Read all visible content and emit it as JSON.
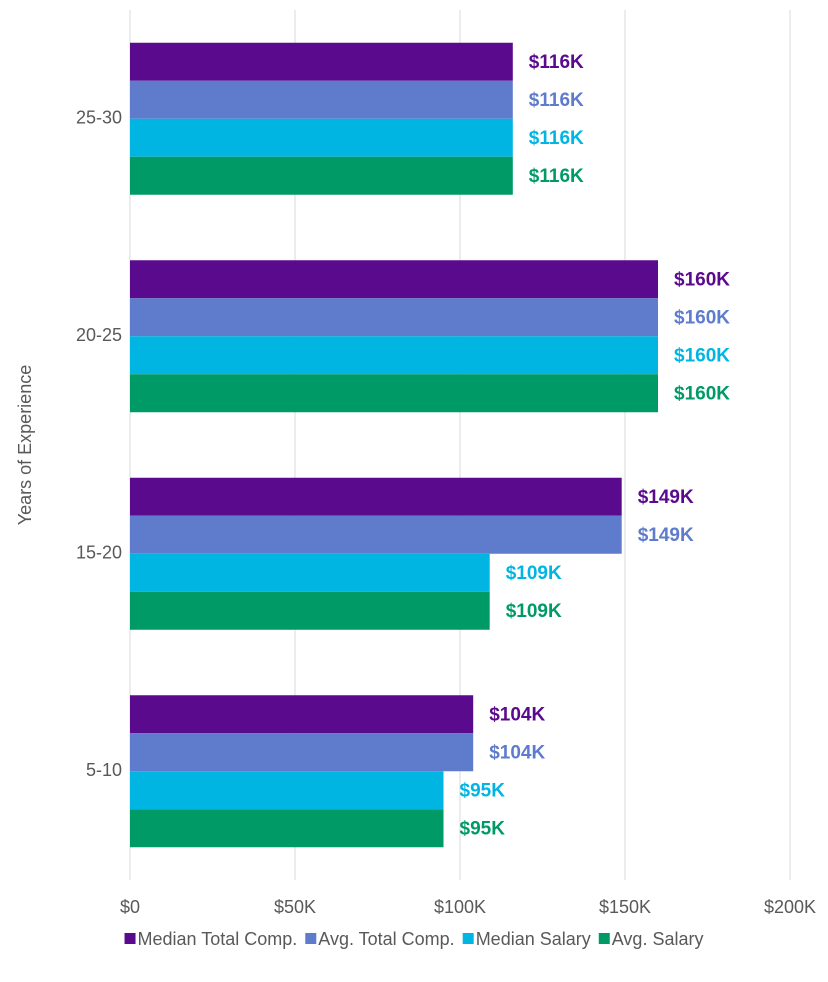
{
  "chart_data": {
    "type": "bar",
    "orientation": "horizontal",
    "y_axis_label": "Years of Experience",
    "categories": [
      "25-30",
      "20-25",
      "15-20",
      "5-10"
    ],
    "series": [
      {
        "name": "Median Total Comp.",
        "color": "#5a0a8c",
        "values": [
          116000,
          160000,
          149000,
          104000
        ],
        "value_labels": [
          "$116K",
          "$160K",
          "$149K",
          "$104K"
        ]
      },
      {
        "name": "Avg. Total Comp.",
        "color": "#5e7bcc",
        "values": [
          116000,
          160000,
          149000,
          104000
        ],
        "value_labels": [
          "$116K",
          "$160K",
          "$149K",
          "$104K"
        ]
      },
      {
        "name": "Median Salary",
        "color": "#00b5e2",
        "values": [
          116000,
          160000,
          109000,
          95000
        ],
        "value_labels": [
          "$116K",
          "$160K",
          "$109K",
          "$95K"
        ]
      },
      {
        "name": "Avg. Salary",
        "color": "#009a66",
        "values": [
          116000,
          160000,
          109000,
          95000
        ],
        "value_labels": [
          "$116K",
          "$160K",
          "$109K",
          "$95K"
        ]
      }
    ],
    "xlim": [
      0,
      200000
    ],
    "xticks": [
      {
        "value": 0,
        "label": "$0"
      },
      {
        "value": 50000,
        "label": "$50K"
      },
      {
        "value": 100000,
        "label": "$100K"
      },
      {
        "value": 150000,
        "label": "$150K"
      },
      {
        "value": 200000,
        "label": "$200K"
      }
    ],
    "grid": true,
    "legend": "bottom"
  }
}
